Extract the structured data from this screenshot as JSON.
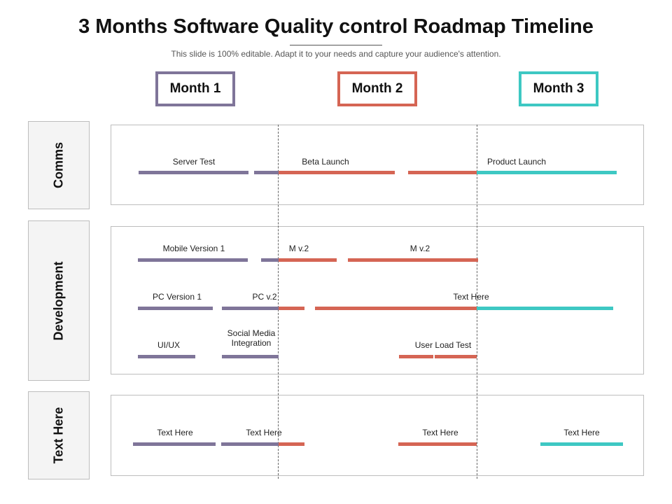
{
  "title": "3 Months Software Quality control Roadmap Timeline",
  "subtitle": "This slide is 100% editable. Adapt it to your needs and capture your audience's attention.",
  "colors": {
    "purple": "#7f7599",
    "red": "#d56554",
    "teal": "#3ec8c3"
  },
  "months": [
    {
      "label": "Month 1",
      "color": "#7f7599"
    },
    {
      "label": "Month 2",
      "color": "#d56554"
    },
    {
      "label": "Month 3",
      "color": "#3ec8c3"
    }
  ],
  "rows": [
    {
      "label": "Comms"
    },
    {
      "label": "Development"
    },
    {
      "label": "Text Here"
    }
  ],
  "tasks": {
    "comms": [
      "Server Test",
      "Beta Launch",
      "Product Launch"
    ],
    "development": [
      "Mobile Version 1",
      "M v.2",
      "M v.2",
      "PC Version 1",
      "PC v.2",
      "Text Here",
      "UI/UX",
      "Social Media Integration",
      "User Load Test"
    ],
    "text_here": [
      "Text Here",
      "Text Here",
      "Text Here",
      "Text Here"
    ]
  }
}
